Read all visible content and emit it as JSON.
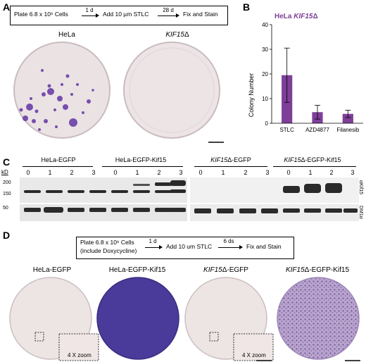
{
  "panels": {
    "A": {
      "letter": "A",
      "flow": {
        "step1": "Plate 6.8 x 10⁶ Cells",
        "arrow1": "1 d",
        "step2": "Add 10 µm STLC",
        "arrow2": "28 d",
        "step3": "Fix and Stain"
      },
      "labels": {
        "left": "HeLa",
        "right_italic": "KIF15",
        "right_suffix": "Δ"
      }
    },
    "B": {
      "letter": "B",
      "title_prefix": "HeLa ",
      "title_italic": "KIF15",
      "title_suffix": "Δ"
    },
    "C": {
      "letter": "C",
      "kd": "kD",
      "groups": [
        "HeLa-EGFP",
        "HeLa-EGFP-Kif15",
        "KIF15Δ-EGFP",
        "KIF15Δ-EGFP-Kif15"
      ],
      "lanes": [
        "0",
        "1",
        "2",
        "3"
      ],
      "mw_markers": [
        "200",
        "150",
        "50"
      ],
      "side_top": "αKif15",
      "side_bottom": "DM1α"
    },
    "D": {
      "letter": "D",
      "flow": {
        "step1_line1": "Plate 6.8 x 10⁶ Cells",
        "step1_line2": "(include Doxycycline)",
        "arrow1": "1 d",
        "step2": "Add 10 um STLC",
        "arrow2": "6 ds",
        "step3": "Fix and Stain"
      },
      "labels": [
        "HeLa-EGFP",
        "HeLa-EGFP-Kif15",
        "KIF15Δ-EGFP",
        "KIF15Δ-EGFP-Kif15"
      ],
      "zoom": "4 X zoom"
    }
  },
  "colors": {
    "plate_bg": "#ece4e6",
    "stain": "#6a3fa8",
    "bar": "#7e3f98",
    "blot_bg": "#e8e8e8",
    "band": "#222222"
  },
  "chart_data": {
    "type": "bar",
    "title": "HeLa KIF15Δ",
    "ylabel": "Colony Number",
    "xlabel": "",
    "categories": [
      "STLC",
      "AZD4877",
      "Filanesib"
    ],
    "values": [
      19.5,
      4.5,
      3.8
    ],
    "errors": [
      11,
      2.8,
      1.5
    ],
    "ylim": [
      0,
      40
    ],
    "yticks": [
      0,
      10,
      20,
      30,
      40
    ],
    "color": "#7e3f98"
  }
}
